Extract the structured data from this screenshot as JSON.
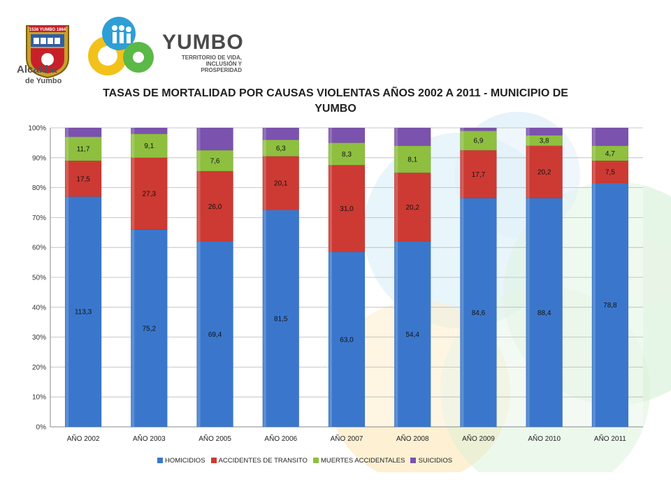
{
  "branding": {
    "seal_banner": "1536 YUMBO 1864",
    "alcaldia_line1": "Alcaldía",
    "alcaldia_line2": "de Yumbo",
    "yumbo_word": "YUMBO",
    "tagline_1": "TERRITORIO DE VIDA,",
    "tagline_2": "INCLUSIÓN Y PROSPERIDAD"
  },
  "chart_data": {
    "type": "bar",
    "stacked": "percent",
    "title_line1": "TASAS DE MORTALIDAD POR CAUSAS VIOLENTAS AÑOS 2002 A 2011 - MUNICIPIO DE",
    "title_line2": "YUMBO",
    "categories": [
      "AÑO 2002",
      "AÑO 2003",
      "AÑO 2005",
      "AÑO 2006",
      "AÑO 2007",
      "AÑO 2008",
      "AÑO 2009",
      "AÑO 2010",
      "AÑO 2011"
    ],
    "y_ticks": [
      "0%",
      "10%",
      "20%",
      "30%",
      "40%",
      "50%",
      "60%",
      "70%",
      "80%",
      "90%",
      "100%"
    ],
    "ylim": [
      0,
      1
    ],
    "grid": true,
    "legend_position": "bottom",
    "series": [
      {
        "name": "HOMICIDIOS",
        "color": "#3a77cc",
        "values": [
          113.3,
          75.2,
          69.4,
          81.5,
          63.0,
          54.4,
          84.6,
          88.4,
          78.8
        ],
        "labels": [
          "113,3",
          "75,2",
          "69,4",
          "81,5",
          "63,0",
          "54,4",
          "84,6",
          "88,4",
          "78,8"
        ],
        "shares": [
          0.77,
          0.66,
          0.62,
          0.725,
          0.585,
          0.62,
          0.765,
          0.765,
          0.815
        ]
      },
      {
        "name": "ACCIDENTES DE TRANSITO",
        "color": "#cc3a33",
        "values": [
          17.5,
          27.3,
          26.0,
          20.1,
          31.0,
          20.2,
          17.7,
          20.2,
          7.5
        ],
        "labels": [
          "17,5",
          "27,3",
          "26,0",
          "20,1",
          "31,0",
          "20,2",
          "17,7",
          "20,2",
          "7,5"
        ],
        "shares": [
          0.12,
          0.24,
          0.235,
          0.18,
          0.29,
          0.23,
          0.16,
          0.175,
          0.075
        ]
      },
      {
        "name": "MUERTES ACCIDENTALES",
        "color": "#8ebf3f",
        "values": [
          11.7,
          9.1,
          7.6,
          6.3,
          8.3,
          8.1,
          6.9,
          3.8,
          4.7
        ],
        "labels": [
          "11,7",
          "9,1",
          "7,6",
          "6,3",
          "8,3",
          "8,1",
          "6,9",
          "3,8",
          "4,7"
        ],
        "shares": [
          0.08,
          0.08,
          0.07,
          0.055,
          0.075,
          0.09,
          0.065,
          0.035,
          0.05
        ]
      },
      {
        "name": "SUICIDIOS",
        "color": "#7b52ad",
        "values": [
          null,
          null,
          null,
          null,
          null,
          null,
          null,
          null,
          null
        ],
        "labels": [
          "",
          "",
          "",
          "",
          "",
          "",
          "",
          "",
          ""
        ],
        "shares": [
          0.03,
          0.02,
          0.075,
          0.04,
          0.05,
          0.06,
          0.01,
          0.025,
          0.06
        ]
      }
    ]
  }
}
